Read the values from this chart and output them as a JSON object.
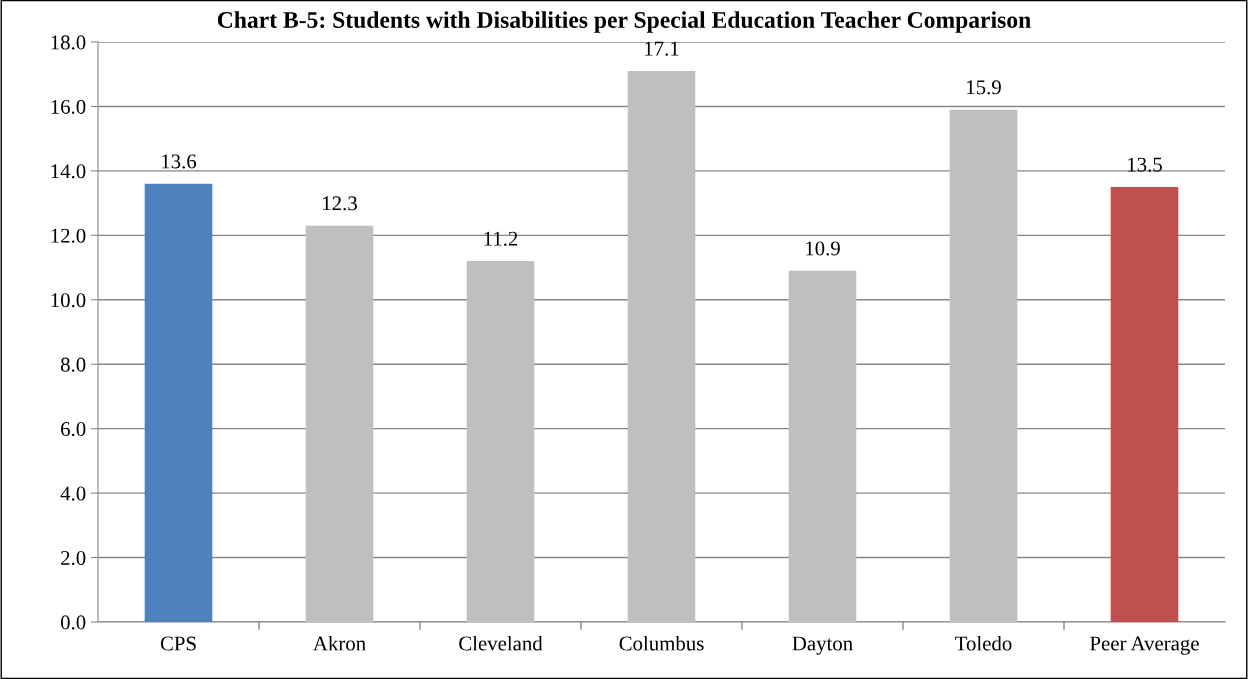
{
  "chart_data": {
    "type": "bar",
    "title": "Chart B-5: Students with Disabilities per Special Education Teacher Comparison",
    "categories": [
      "CPS",
      "Akron",
      "Cleveland",
      "Columbus",
      "Dayton",
      "Toledo",
      "Peer Average"
    ],
    "values": [
      13.6,
      12.3,
      11.2,
      17.1,
      10.9,
      15.9,
      13.5
    ],
    "colors": [
      "#4f81bd",
      "#bfbfbf",
      "#bfbfbf",
      "#bfbfbf",
      "#bfbfbf",
      "#bfbfbf",
      "#c0504d"
    ],
    "ylim": [
      0,
      18
    ],
    "yticks": [
      {
        "value": 0,
        "label": "0.0"
      },
      {
        "value": 2,
        "label": "2.0"
      },
      {
        "value": 4,
        "label": "4.0"
      },
      {
        "value": 6,
        "label": "6.0"
      },
      {
        "value": 8,
        "label": "8.0"
      },
      {
        "value": 10,
        "label": "10.0"
      },
      {
        "value": 12,
        "label": "12.0"
      },
      {
        "value": 14,
        "label": "14.0"
      },
      {
        "value": 16,
        "label": "16.0"
      },
      {
        "value": 18,
        "label": "18.0"
      }
    ],
    "grid": "y",
    "data_labels": true,
    "legend": false
  }
}
